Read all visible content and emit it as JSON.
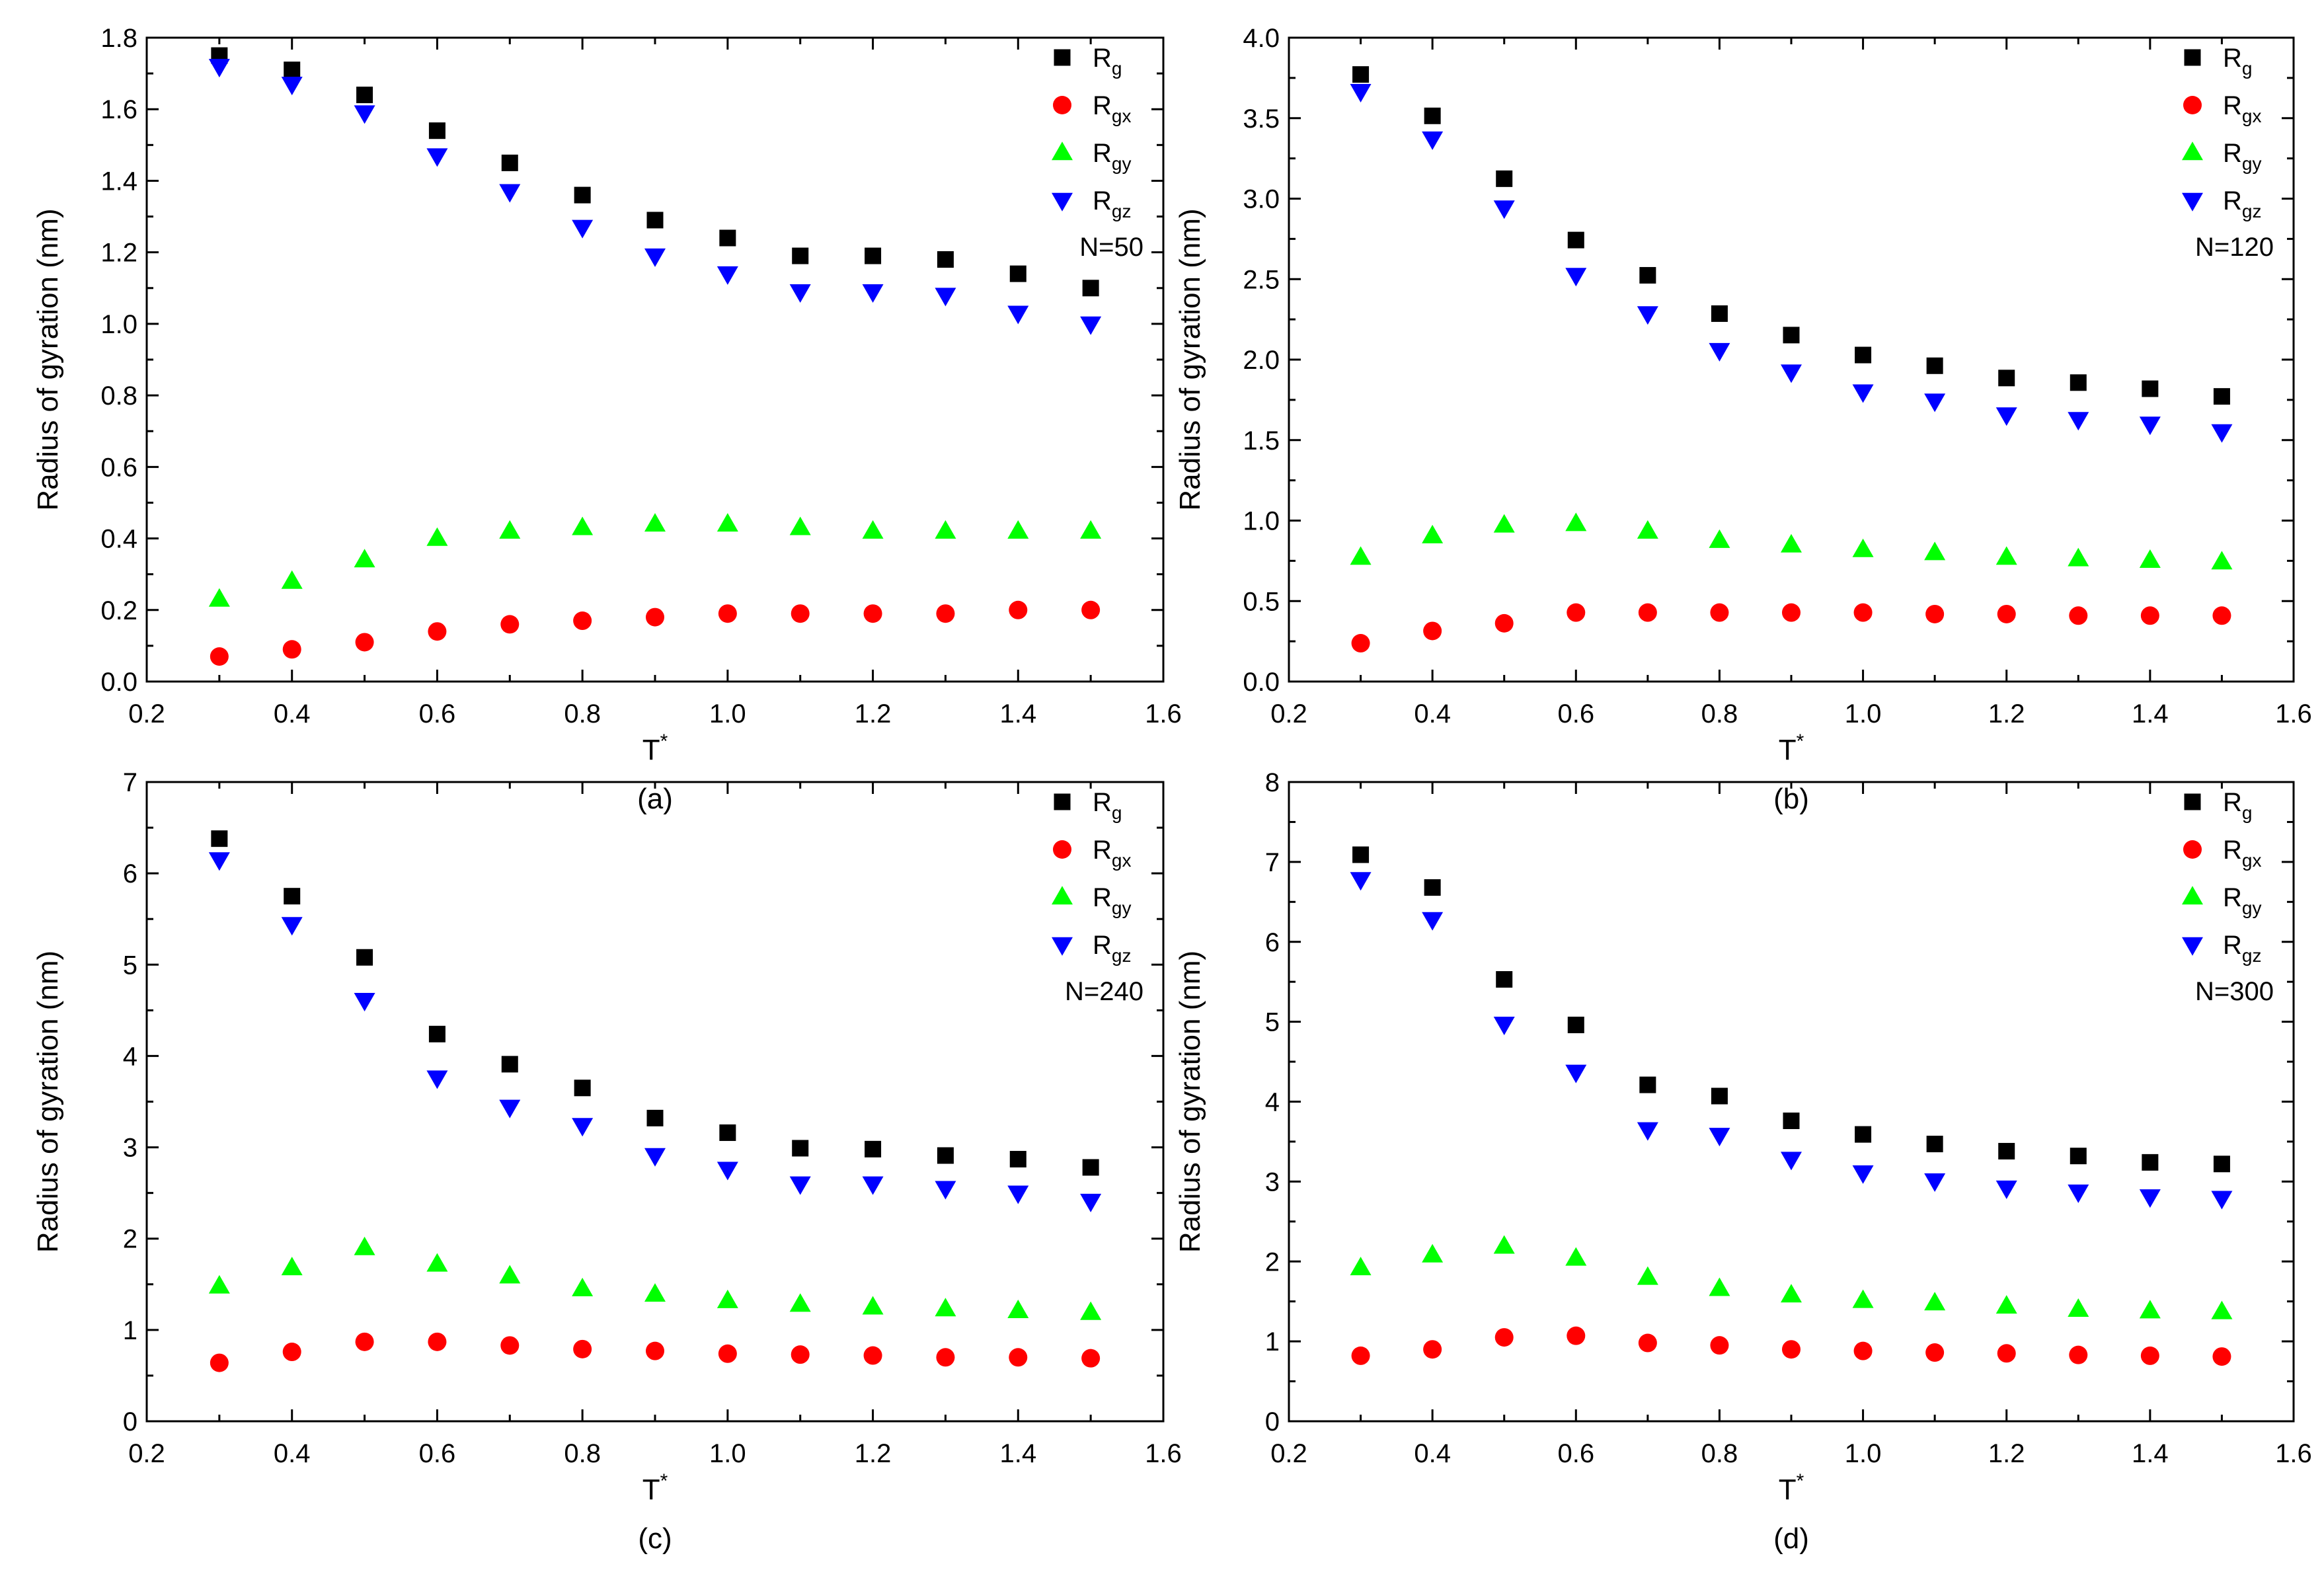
{
  "colors": {
    "Rg": "#000000",
    "Rgx": "#ff0000",
    "Rgy": "#00ff00",
    "Rgz": "#0000ff",
    "axis": "#000000",
    "background": "#ffffff"
  },
  "legend": {
    "entries": [
      {
        "key": "Rg",
        "base": "R",
        "sub": "g",
        "marker": "square"
      },
      {
        "key": "Rgx",
        "base": "R",
        "sub": "gx",
        "marker": "circle"
      },
      {
        "key": "Rgy",
        "base": "R",
        "sub": "gy",
        "marker": "triangle-up"
      },
      {
        "key": "Rgz",
        "base": "R",
        "sub": "gz",
        "marker": "triangle-down"
      }
    ],
    "placement": "top-right"
  },
  "chart_data": [
    {
      "type": "scatter",
      "caption": "(a)",
      "annotation": "N=50",
      "xlabel": "T",
      "xlabel_sup": "*",
      "ylabel": "Radius of gyration (nm)",
      "xlim": [
        0.2,
        1.6
      ],
      "ylim": [
        0.0,
        1.8
      ],
      "xticks": [
        "0.2",
        "0.4",
        "0.6",
        "0.8",
        "1.0",
        "1.2",
        "1.4",
        "1.6"
      ],
      "yticks": [
        "0.0",
        "0.2",
        "0.4",
        "0.6",
        "0.8",
        "1.0",
        "1.2",
        "1.4",
        "1.6",
        "1.8"
      ],
      "x": [
        0.3,
        0.4,
        0.5,
        0.6,
        0.7,
        0.8,
        0.9,
        1.0,
        1.1,
        1.2,
        1.3,
        1.4,
        1.5
      ],
      "series": [
        {
          "key": "Rg",
          "values": [
            1.75,
            1.71,
            1.64,
            1.54,
            1.45,
            1.36,
            1.29,
            1.24,
            1.19,
            1.19,
            1.18,
            1.14,
            1.1
          ]
        },
        {
          "key": "Rgx",
          "values": [
            0.07,
            0.09,
            0.11,
            0.14,
            0.16,
            0.17,
            0.18,
            0.19,
            0.19,
            0.19,
            0.19,
            0.2,
            0.2
          ]
        },
        {
          "key": "Rgy",
          "values": [
            0.23,
            0.28,
            0.34,
            0.4,
            0.42,
            0.43,
            0.44,
            0.44,
            0.43,
            0.42,
            0.42,
            0.42,
            0.42
          ]
        },
        {
          "key": "Rgz",
          "values": [
            1.72,
            1.67,
            1.59,
            1.47,
            1.37,
            1.27,
            1.19,
            1.14,
            1.09,
            1.09,
            1.08,
            1.03,
            1.0
          ]
        }
      ]
    },
    {
      "type": "scatter",
      "caption": "(b)",
      "annotation": "N=120",
      "xlabel": "T",
      "xlabel_sup": "*",
      "ylabel": "Radius of gyration (nm)",
      "xlim": [
        0.2,
        1.6
      ],
      "ylim": [
        0.0,
        4.2
      ],
      "xticks": [
        "0.2",
        "0.4",
        "0.6",
        "0.8",
        "1.0",
        "1.2",
        "1.4",
        "1.6"
      ],
      "yticks": [
        "0.0",
        "0.5",
        "1.0",
        "1.5",
        "2.0",
        "2.5",
        "3.0",
        "3.5",
        "4.0"
      ],
      "x": [
        0.3,
        0.4,
        0.5,
        0.6,
        0.7,
        0.8,
        0.9,
        1.0,
        1.1,
        1.2,
        1.3,
        1.4,
        1.5
      ],
      "series": [
        {
          "key": "Rg",
          "values": [
            3.96,
            3.69,
            3.28,
            2.88,
            2.65,
            2.4,
            2.26,
            2.13,
            2.06,
            1.98,
            1.95,
            1.91,
            1.86
          ]
        },
        {
          "key": "Rgx",
          "values": [
            0.25,
            0.33,
            0.38,
            0.45,
            0.45,
            0.45,
            0.45,
            0.45,
            0.44,
            0.44,
            0.43,
            0.43,
            0.43
          ]
        },
        {
          "key": "Rgy",
          "values": [
            0.81,
            0.95,
            1.02,
            1.03,
            0.98,
            0.92,
            0.89,
            0.86,
            0.84,
            0.81,
            0.8,
            0.79,
            0.78
          ]
        },
        {
          "key": "Rgz",
          "values": [
            3.85,
            3.54,
            3.09,
            2.65,
            2.4,
            2.16,
            2.02,
            1.89,
            1.83,
            1.74,
            1.71,
            1.68,
            1.63
          ]
        }
      ]
    },
    {
      "type": "scatter",
      "caption": "(c)",
      "annotation": "N=240",
      "xlabel": "T",
      "xlabel_sup": "*",
      "ylabel": "Radius of gyration (nm)",
      "xlim": [
        0.2,
        1.6
      ],
      "ylim": [
        0,
        7
      ],
      "xticks": [
        "0.2",
        "0.4",
        "0.6",
        "0.8",
        "1.0",
        "1.2",
        "1.4",
        "1.6"
      ],
      "yticks": [
        "0",
        "1",
        "2",
        "3",
        "4",
        "5",
        "6",
        "7"
      ],
      "x": [
        0.3,
        0.4,
        0.5,
        0.6,
        0.7,
        0.8,
        0.9,
        1.0,
        1.1,
        1.2,
        1.3,
        1.4,
        1.5
      ],
      "series": [
        {
          "key": "Rg",
          "values": [
            6.38,
            5.75,
            5.08,
            4.24,
            3.91,
            3.65,
            3.32,
            3.16,
            2.99,
            2.98,
            2.91,
            2.87,
            2.78
          ]
        },
        {
          "key": "Rgx",
          "values": [
            0.64,
            0.76,
            0.87,
            0.87,
            0.83,
            0.79,
            0.77,
            0.74,
            0.73,
            0.72,
            0.7,
            0.7,
            0.69
          ]
        },
        {
          "key": "Rgy",
          "values": [
            1.48,
            1.68,
            1.9,
            1.72,
            1.59,
            1.45,
            1.39,
            1.32,
            1.28,
            1.25,
            1.23,
            1.21,
            1.19
          ]
        },
        {
          "key": "Rgz",
          "values": [
            6.15,
            5.44,
            4.61,
            3.76,
            3.44,
            3.24,
            2.91,
            2.76,
            2.6,
            2.6,
            2.55,
            2.5,
            2.41
          ]
        }
      ]
    },
    {
      "type": "scatter",
      "caption": "(d)",
      "annotation": "N=300",
      "xlabel": "T",
      "xlabel_sup": "*",
      "ylabel": "Radius of gyration (nm)",
      "xlim": [
        0.2,
        1.6
      ],
      "ylim": [
        0,
        8
      ],
      "xticks": [
        "0.2",
        "0.4",
        "0.6",
        "0.8",
        "1.0",
        "1.2",
        "1.4",
        "1.6"
      ],
      "yticks": [
        "0",
        "1",
        "2",
        "3",
        "4",
        "5",
        "6",
        "7",
        "8"
      ],
      "x": [
        0.3,
        0.4,
        0.5,
        0.6,
        0.7,
        0.8,
        0.9,
        1.0,
        1.1,
        1.2,
        1.3,
        1.4,
        1.5
      ],
      "series": [
        {
          "key": "Rg",
          "values": [
            7.09,
            6.68,
            5.53,
            4.96,
            4.21,
            4.07,
            3.76,
            3.59,
            3.47,
            3.38,
            3.32,
            3.24,
            3.22
          ]
        },
        {
          "key": "Rgx",
          "values": [
            0.82,
            0.9,
            1.05,
            1.07,
            0.98,
            0.95,
            0.9,
            0.88,
            0.86,
            0.85,
            0.83,
            0.82,
            0.81
          ]
        },
        {
          "key": "Rgy",
          "values": [
            1.92,
            2.08,
            2.19,
            2.04,
            1.8,
            1.66,
            1.58,
            1.51,
            1.48,
            1.44,
            1.4,
            1.38,
            1.37
          ]
        },
        {
          "key": "Rgz",
          "values": [
            6.78,
            6.28,
            4.97,
            4.37,
            3.65,
            3.58,
            3.28,
            3.11,
            3.01,
            2.92,
            2.87,
            2.81,
            2.79
          ]
        }
      ]
    }
  ]
}
